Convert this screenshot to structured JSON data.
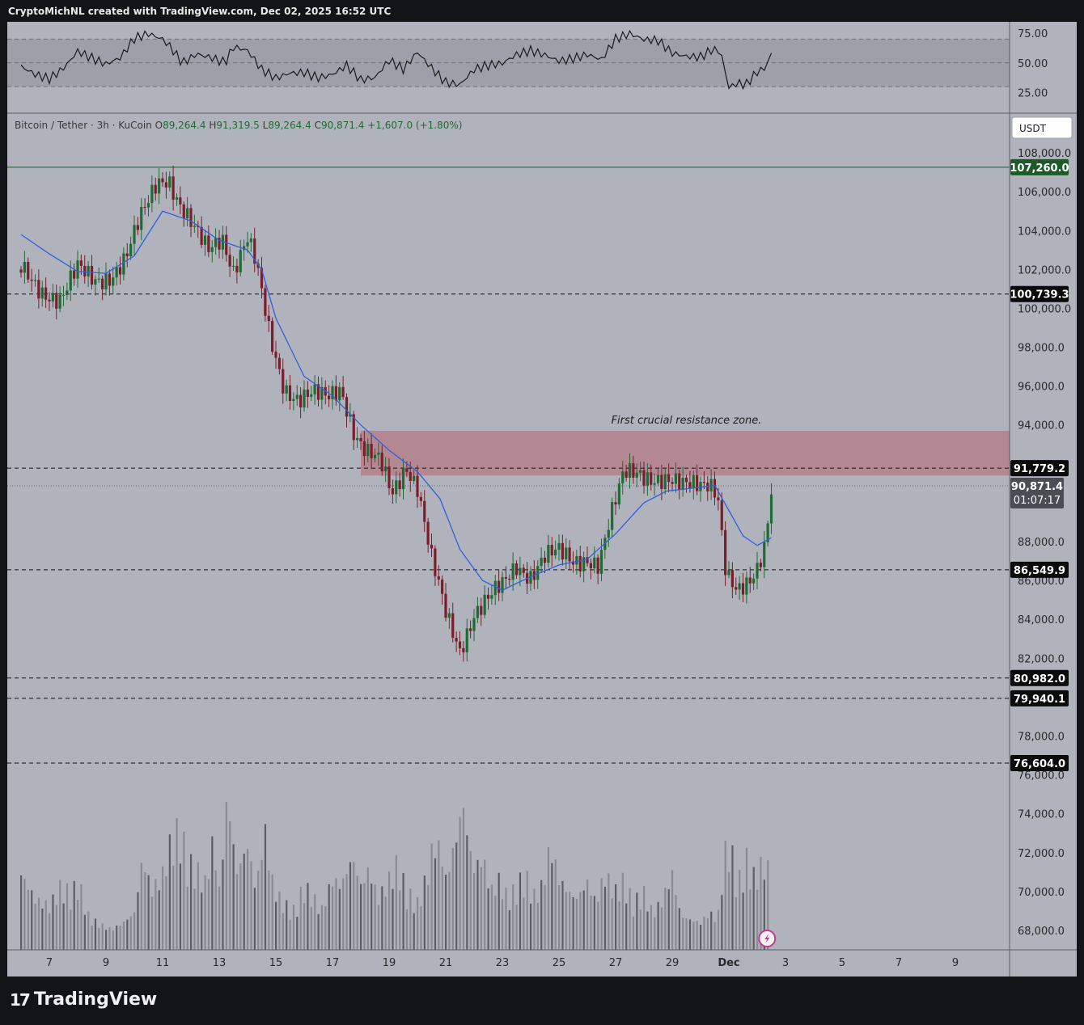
{
  "header": {
    "attribution": "CryptoMichNL created with TradingView.com, Dec 02, 2025 16:52 UTC"
  },
  "footer": {
    "brand": "TradingView",
    "logo_icon": "tradingview-logo-icon"
  },
  "colors": {
    "background": "#131417",
    "pane": "#b1b3bc",
    "up_candle": "#1f6b34",
    "down_candle": "#7a1e2a",
    "ma_line": "#2f5fe0",
    "zone_fill": "#b57a84",
    "green_label": "#1d5a28",
    "text_dark": "#1e1e1e"
  },
  "chart_data": {
    "type": "candlestick",
    "legend": {
      "symbol": "Bitcoin / Tether · 3h · KuCoin",
      "open_label": "O",
      "open": "89,264.4",
      "high_label": "H",
      "high": "91,319.5",
      "low_label": "L",
      "low": "89,264.4",
      "close_label": "C",
      "close": "90,871.4",
      "change": "+1,607.0 (+1.80%)"
    },
    "currency_button": "USDT",
    "x_axis": {
      "ticks": [
        "7",
        "9",
        "11",
        "13",
        "15",
        "17",
        "19",
        "21",
        "23",
        "25",
        "27",
        "29",
        "Dec",
        "3",
        "5",
        "7",
        "9"
      ],
      "tick_days": [
        7,
        9,
        11,
        13,
        15,
        17,
        19,
        21,
        23,
        25,
        27,
        29,
        31,
        33,
        35,
        37,
        39
      ]
    },
    "y_axis": {
      "ylim": [
        67000,
        110000
      ],
      "ticks": [
        "108,000.0",
        "106,000.0",
        "104,000.0",
        "102,000.0",
        "100,000.0",
        "98,000.0",
        "96,000.0",
        "94,000.0",
        "92,000.0",
        "90,000.0",
        "88,000.0",
        "86,000.0",
        "84,000.0",
        "82,000.0",
        "80,000.0",
        "78,000.0",
        "76,000.0",
        "74,000.0",
        "72,000.0",
        "70,000.0",
        "68,000.0"
      ],
      "tick_values": [
        108000,
        106000,
        104000,
        102000,
        100000,
        98000,
        96000,
        94000,
        92000,
        90000,
        88000,
        86000,
        84000,
        82000,
        80000,
        78000,
        76000,
        74000,
        72000,
        70000,
        68000
      ]
    },
    "price_path": [
      [
        6.0,
        102000
      ],
      [
        6.7,
        101000
      ],
      [
        7.4,
        100400
      ],
      [
        8.0,
        102000
      ],
      [
        8.6,
        101500
      ],
      [
        9.2,
        101700
      ],
      [
        9.7,
        102500
      ],
      [
        10.2,
        104500
      ],
      [
        10.8,
        106600
      ],
      [
        11.2,
        106800
      ],
      [
        11.6,
        105300
      ],
      [
        12.1,
        104000
      ],
      [
        12.6,
        103000
      ],
      [
        13.1,
        103800
      ],
      [
        13.5,
        102000
      ],
      [
        14.0,
        103500
      ],
      [
        14.3,
        102200
      ],
      [
        14.8,
        98500
      ],
      [
        15.3,
        96000
      ],
      [
        15.8,
        95300
      ],
      [
        16.3,
        95500
      ],
      [
        16.8,
        95400
      ],
      [
        17.3,
        96000
      ],
      [
        17.8,
        93500
      ],
      [
        18.2,
        92500
      ],
      [
        18.7,
        92000
      ],
      [
        19.1,
        90500
      ],
      [
        19.6,
        92000
      ],
      [
        20.0,
        90800
      ],
      [
        20.5,
        87000
      ],
      [
        21.0,
        84300
      ],
      [
        21.5,
        82500
      ],
      [
        22.0,
        84300
      ],
      [
        22.5,
        85000
      ],
      [
        23.0,
        85700
      ],
      [
        23.5,
        86800
      ],
      [
        24.0,
        86300
      ],
      [
        24.5,
        87200
      ],
      [
        25.0,
        87400
      ],
      [
        25.5,
        87000
      ],
      [
        26.0,
        87200
      ],
      [
        26.4,
        86800
      ],
      [
        26.8,
        89000
      ],
      [
        27.3,
        91500
      ],
      [
        27.8,
        91700
      ],
      [
        28.3,
        91300
      ],
      [
        28.8,
        91000
      ],
      [
        29.3,
        90800
      ],
      [
        29.8,
        91100
      ],
      [
        30.3,
        91200
      ],
      [
        30.6,
        90500
      ],
      [
        30.9,
        86200
      ],
      [
        31.3,
        85200
      ],
      [
        31.7,
        85800
      ],
      [
        32.0,
        86700
      ],
      [
        32.3,
        88200
      ],
      [
        32.5,
        90900
      ]
    ],
    "moving_average": [
      [
        6.0,
        103800
      ],
      [
        7.0,
        102800
      ],
      [
        8.0,
        101900
      ],
      [
        9.0,
        101800
      ],
      [
        10.0,
        102700
      ],
      [
        11.0,
        105000
      ],
      [
        12.0,
        104500
      ],
      [
        13.0,
        103500
      ],
      [
        14.0,
        103000
      ],
      [
        14.5,
        102000
      ],
      [
        15.0,
        99500
      ],
      [
        16.0,
        96500
      ],
      [
        17.0,
        95500
      ],
      [
        18.0,
        94000
      ],
      [
        19.0,
        92700
      ],
      [
        20.0,
        91600
      ],
      [
        20.8,
        90200
      ],
      [
        21.5,
        87600
      ],
      [
        22.3,
        86000
      ],
      [
        23.0,
        85500
      ],
      [
        24.0,
        86200
      ],
      [
        25.0,
        86800
      ],
      [
        26.0,
        87100
      ],
      [
        27.0,
        88400
      ],
      [
        28.0,
        90000
      ],
      [
        28.8,
        90600
      ],
      [
        30.0,
        90800
      ],
      [
        30.5,
        90900
      ],
      [
        31.0,
        89600
      ],
      [
        31.5,
        88300
      ],
      [
        32.0,
        87800
      ],
      [
        32.5,
        88200
      ]
    ],
    "horizontal_levels": [
      {
        "value": 107260.0,
        "label": "107,260.0",
        "style": "solid",
        "label_style": "green"
      },
      {
        "value": 100739.3,
        "label": "100,739.3",
        "style": "dashed",
        "label_style": "black"
      },
      {
        "value": 91779.2,
        "label": "91,779.2",
        "style": "dashed",
        "label_style": "black"
      },
      {
        "value": 86549.9,
        "label": "86,549.9",
        "style": "dashed",
        "label_style": "black"
      },
      {
        "value": 80982.0,
        "label": "80,982.0",
        "style": "dashed",
        "label_style": "black"
      },
      {
        "value": 79940.1,
        "label": "79,940.1",
        "style": "dashed",
        "label_style": "black"
      },
      {
        "value": 76604.0,
        "label": "76,604.0",
        "style": "dashed",
        "label_style": "black"
      }
    ],
    "current_price": {
      "value": 90871.4,
      "label": "90,871.4",
      "countdown": "01:07:17"
    },
    "resistance_zone": {
      "x_start": 18.0,
      "x_end": 40.0,
      "y_low": 91400,
      "y_high": 93700,
      "annotation": "First crucial resistance zone."
    },
    "rsi": {
      "ticks": [
        "75.00",
        "50.00",
        "25.00"
      ],
      "tick_values": [
        75,
        50,
        25
      ],
      "band": [
        30,
        70
      ],
      "values": [
        [
          6.0,
          45
        ],
        [
          6.5,
          40
        ],
        [
          7.0,
          38
        ],
        [
          7.5,
          48
        ],
        [
          8.0,
          62
        ],
        [
          8.5,
          55
        ],
        [
          9.0,
          48
        ],
        [
          9.5,
          52
        ],
        [
          10.0,
          68
        ],
        [
          10.5,
          73
        ],
        [
          11.0,
          70
        ],
        [
          11.3,
          64
        ],
        [
          11.7,
          52
        ],
        [
          12.2,
          60
        ],
        [
          12.7,
          56
        ],
        [
          13.2,
          50
        ],
        [
          13.5,
          62
        ],
        [
          14.0,
          58
        ],
        [
          14.5,
          42
        ],
        [
          15.0,
          36
        ],
        [
          15.5,
          42
        ],
        [
          16.0,
          44
        ],
        [
          16.5,
          40
        ],
        [
          17.0,
          42
        ],
        [
          17.5,
          48
        ],
        [
          18.0,
          34
        ],
        [
          18.5,
          35
        ],
        [
          19.0,
          50
        ],
        [
          19.5,
          44
        ],
        [
          20.0,
          60
        ],
        [
          20.5,
          48
        ],
        [
          21.0,
          36
        ],
        [
          21.5,
          33
        ],
        [
          22.0,
          44
        ],
        [
          22.5,
          46
        ],
        [
          23.0,
          47
        ],
        [
          23.5,
          55
        ],
        [
          24.0,
          60
        ],
        [
          24.5,
          58
        ],
        [
          25.0,
          54
        ],
        [
          25.5,
          56
        ],
        [
          26.0,
          58
        ],
        [
          26.5,
          52
        ],
        [
          27.0,
          68
        ],
        [
          27.5,
          72
        ],
        [
          28.0,
          68
        ],
        [
          28.5,
          69
        ],
        [
          29.0,
          60
        ],
        [
          29.5,
          58
        ],
        [
          30.0,
          57
        ],
        [
          30.4,
          62
        ],
        [
          30.7,
          60
        ],
        [
          31.0,
          28
        ],
        [
          31.3,
          31
        ],
        [
          31.6,
          29
        ],
        [
          32.0,
          40
        ],
        [
          32.3,
          44
        ],
        [
          32.6,
          63
        ]
      ]
    },
    "volume": {
      "values": [
        [
          6.0,
          0.45
        ],
        [
          6.5,
          0.3
        ],
        [
          7.0,
          0.26
        ],
        [
          7.4,
          0.38
        ],
        [
          7.8,
          0.33
        ],
        [
          8.0,
          0.42
        ],
        [
          8.4,
          0.19
        ],
        [
          8.8,
          0.15
        ],
        [
          9.2,
          0.12
        ],
        [
          9.6,
          0.16
        ],
        [
          10.0,
          0.22
        ],
        [
          10.3,
          0.55
        ],
        [
          10.6,
          0.35
        ],
        [
          11.0,
          0.45
        ],
        [
          11.2,
          0.6
        ],
        [
          11.6,
          0.73
        ],
        [
          11.9,
          0.52
        ],
        [
          12.2,
          0.48
        ],
        [
          12.5,
          0.4
        ],
        [
          12.8,
          0.66
        ],
        [
          13.0,
          0.35
        ],
        [
          13.3,
          0.93
        ],
        [
          13.6,
          0.45
        ],
        [
          14.0,
          0.62
        ],
        [
          14.3,
          0.35
        ],
        [
          14.6,
          0.72
        ],
        [
          14.9,
          0.38
        ],
        [
          15.2,
          0.29
        ],
        [
          15.6,
          0.23
        ],
        [
          16.0,
          0.38
        ],
        [
          16.3,
          0.32
        ],
        [
          16.6,
          0.23
        ],
        [
          17.0,
          0.42
        ],
        [
          17.3,
          0.38
        ],
        [
          17.7,
          0.55
        ],
        [
          18.0,
          0.38
        ],
        [
          18.3,
          0.48
        ],
        [
          18.6,
          0.3
        ],
        [
          19.0,
          0.42
        ],
        [
          19.3,
          0.52
        ],
        [
          19.6,
          0.35
        ],
        [
          20.0,
          0.28
        ],
        [
          20.3,
          0.42
        ],
        [
          20.6,
          0.65
        ],
        [
          20.9,
          0.55
        ],
        [
          21.0,
          0.42
        ],
        [
          21.2,
          0.55
        ],
        [
          21.4,
          0.68
        ],
        [
          21.6,
          0.88
        ],
        [
          21.8,
          0.63
        ],
        [
          22.0,
          0.48
        ],
        [
          22.3,
          0.55
        ],
        [
          22.6,
          0.35
        ],
        [
          22.9,
          0.42
        ],
        [
          23.2,
          0.3
        ],
        [
          23.5,
          0.38
        ],
        [
          23.8,
          0.45
        ],
        [
          24.1,
          0.32
        ],
        [
          24.4,
          0.38
        ],
        [
          24.7,
          0.62
        ],
        [
          25.0,
          0.42
        ],
        [
          25.3,
          0.35
        ],
        [
          25.6,
          0.3
        ],
        [
          26.0,
          0.4
        ],
        [
          26.3,
          0.28
        ],
        [
          26.6,
          0.45
        ],
        [
          27.0,
          0.35
        ],
        [
          27.3,
          0.42
        ],
        [
          27.6,
          0.28
        ],
        [
          28.0,
          0.34
        ],
        [
          28.3,
          0.22
        ],
        [
          28.6,
          0.28
        ],
        [
          29.0,
          0.45
        ],
        [
          29.3,
          0.2
        ],
        [
          29.6,
          0.18
        ],
        [
          30.0,
          0.16
        ],
        [
          30.3,
          0.22
        ],
        [
          30.6,
          0.18
        ],
        [
          30.9,
          0.62
        ],
        [
          31.1,
          0.58
        ],
        [
          31.3,
          0.38
        ],
        [
          31.6,
          0.55
        ],
        [
          31.9,
          0.43
        ],
        [
          32.2,
          0.52
        ],
        [
          32.4,
          0.48
        ]
      ],
      "bolt_icon": "lightning-icon"
    }
  }
}
